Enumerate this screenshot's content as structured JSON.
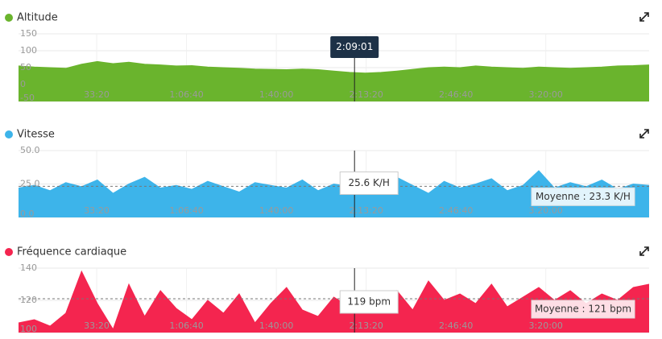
{
  "chart_data": [
    {
      "type": "area",
      "title": "Altitude",
      "color": "#6ab42d",
      "xlim": [
        260,
        14300
      ],
      "xticks": [
        {
          "value": 2000,
          "label": "33:20"
        },
        {
          "value": 4000,
          "label": "1:06:40"
        },
        {
          "value": 6000,
          "label": "1:40:00"
        },
        {
          "value": 8000,
          "label": "2:13:20"
        },
        {
          "value": 10000,
          "label": "2:46:40"
        },
        {
          "value": 12000,
          "label": "3:20:00"
        }
      ],
      "ylim": [
        -50,
        150
      ],
      "yticks": [
        -50,
        0,
        50,
        100,
        150
      ],
      "x": [
        260,
        611,
        962,
        1313,
        1664,
        2015,
        2366,
        2717,
        3068,
        3419,
        3770,
        4121,
        4472,
        4823,
        5174,
        5525,
        5876,
        6227,
        6578,
        6929,
        7280,
        7631,
        7982,
        8333,
        8684,
        9035,
        9386,
        9737,
        10088,
        10439,
        10790,
        11141,
        11492,
        11843,
        12194,
        12545,
        12896,
        13247,
        13598,
        13949,
        14300
      ],
      "values": [
        55,
        52,
        50,
        48,
        60,
        68,
        62,
        66,
        60,
        58,
        55,
        56,
        52,
        50,
        48,
        46,
        45,
        44,
        46,
        44,
        40,
        36,
        34,
        36,
        40,
        45,
        50,
        52,
        50,
        55,
        52,
        50,
        48,
        52,
        50,
        48,
        50,
        52,
        55,
        56,
        58
      ],
      "cursor": {
        "value": 7741,
        "label": "2:09:01"
      }
    },
    {
      "type": "area",
      "title": "Vitesse",
      "color": "#3db4ea",
      "xlim": [
        260,
        14300
      ],
      "xticks": [
        {
          "value": 2000,
          "label": "33:20"
        },
        {
          "value": 4000,
          "label": "1:06:40"
        },
        {
          "value": 6000,
          "label": "1:40:00"
        },
        {
          "value": 8000,
          "label": "2:13:20"
        },
        {
          "value": 10000,
          "label": "2:46:40"
        },
        {
          "value": 12000,
          "label": "3:20:00"
        }
      ],
      "ylim": [
        0,
        50
      ],
      "yticks": [
        {
          "value": 0,
          "label": "0.0"
        },
        {
          "value": 25,
          "label": "25.0"
        },
        {
          "value": 50,
          "label": "50.0"
        }
      ],
      "x": [
        260,
        611,
        962,
        1313,
        1664,
        2015,
        2366,
        2717,
        3068,
        3419,
        3770,
        4121,
        4472,
        4823,
        5174,
        5525,
        5876,
        6227,
        6578,
        6929,
        7280,
        7631,
        7982,
        8333,
        8684,
        9035,
        9386,
        9737,
        10088,
        10439,
        10790,
        11141,
        11492,
        11843,
        12194,
        12545,
        12896,
        13247,
        13598,
        13949,
        14300
      ],
      "values": [
        22,
        24,
        20,
        26,
        23,
        28,
        18,
        25,
        30,
        22,
        24,
        21,
        27,
        23,
        19,
        26,
        24,
        22,
        28,
        20,
        25,
        23,
        26,
        21,
        30,
        24,
        18,
        27,
        22,
        25,
        29,
        20,
        24,
        35,
        22,
        26,
        23,
        28,
        21,
        25,
        24
      ],
      "cursor": {
        "value": 25.6,
        "label": "25.6 K/H"
      },
      "mean": {
        "value": 23.3,
        "label": "Moyenne : 23.3 K/H"
      }
    },
    {
      "type": "area",
      "title": "Fréquence cardiaque",
      "color": "#f4254f",
      "xlim": [
        260,
        14300
      ],
      "xticks": [
        {
          "value": 2000,
          "label": "33:20"
        },
        {
          "value": 4000,
          "label": "1:06:40"
        },
        {
          "value": 6000,
          "label": "1:40:00"
        },
        {
          "value": 8000,
          "label": "2:13:20"
        },
        {
          "value": 10000,
          "label": "2:46:40"
        },
        {
          "value": 12000,
          "label": "3:20:00"
        }
      ],
      "ylim": [
        100,
        140
      ],
      "yticks": [
        100,
        120,
        140
      ],
      "x": [
        260,
        611,
        962,
        1313,
        1664,
        2015,
        2366,
        2717,
        3068,
        3419,
        3770,
        4121,
        4472,
        4823,
        5174,
        5525,
        5876,
        6227,
        6578,
        6929,
        7280,
        7631,
        7982,
        8333,
        8684,
        9035,
        9386,
        9737,
        10088,
        10439,
        10790,
        11141,
        11492,
        11843,
        12194,
        12545,
        12896,
        13247,
        13598,
        13949,
        14300
      ],
      "values": [
        106,
        108,
        104,
        112,
        138,
        118,
        102,
        130,
        110,
        126,
        115,
        108,
        120,
        112,
        124,
        106,
        118,
        128,
        114,
        110,
        122,
        116,
        120,
        118,
        126,
        114,
        132,
        120,
        124,
        118,
        130,
        116,
        122,
        128,
        120,
        126,
        118,
        124,
        120,
        128,
        130
      ],
      "cursor": {
        "value": 119,
        "label": "119 bpm"
      },
      "mean": {
        "value": 121,
        "label": "Moyenne : 121 bpm"
      }
    }
  ]
}
